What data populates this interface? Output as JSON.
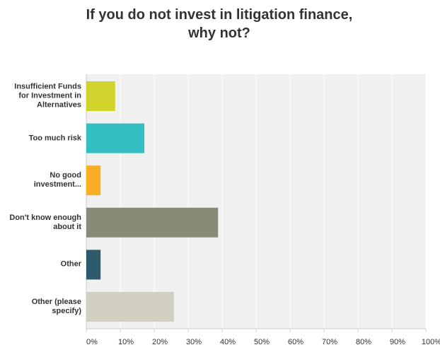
{
  "chart_data": {
    "type": "bar",
    "orientation": "horizontal",
    "title": "If you do not invest in litigation finance, why not?",
    "categories": [
      "Insufficient Funds for Investment in Alternatives",
      "Too much risk",
      "No good investment...",
      "Don't know enough about it",
      "Other",
      "Other (please specify)"
    ],
    "values": [
      8.5,
      17.1,
      4.2,
      38.8,
      4.2,
      25.8
    ],
    "colors": [
      "#d1d42c",
      "#33bec1",
      "#f9ae24",
      "#8a8a78",
      "#2d5b6b",
      "#d1cfc0"
    ],
    "xlim": [
      0,
      100
    ],
    "xticks": [
      {
        "value": 0,
        "label": "0%"
      },
      {
        "value": 10,
        "label": "10%"
      },
      {
        "value": 20,
        "label": "20%"
      },
      {
        "value": 30,
        "label": "30%"
      },
      {
        "value": 40,
        "label": "40%"
      },
      {
        "value": 50,
        "label": "50%"
      },
      {
        "value": 60,
        "label": "60%"
      },
      {
        "value": 70,
        "label": "70%"
      },
      {
        "value": 80,
        "label": "80%"
      },
      {
        "value": 90,
        "label": "90%"
      },
      {
        "value": 100,
        "label": "100%"
      }
    ],
    "grid": true
  }
}
